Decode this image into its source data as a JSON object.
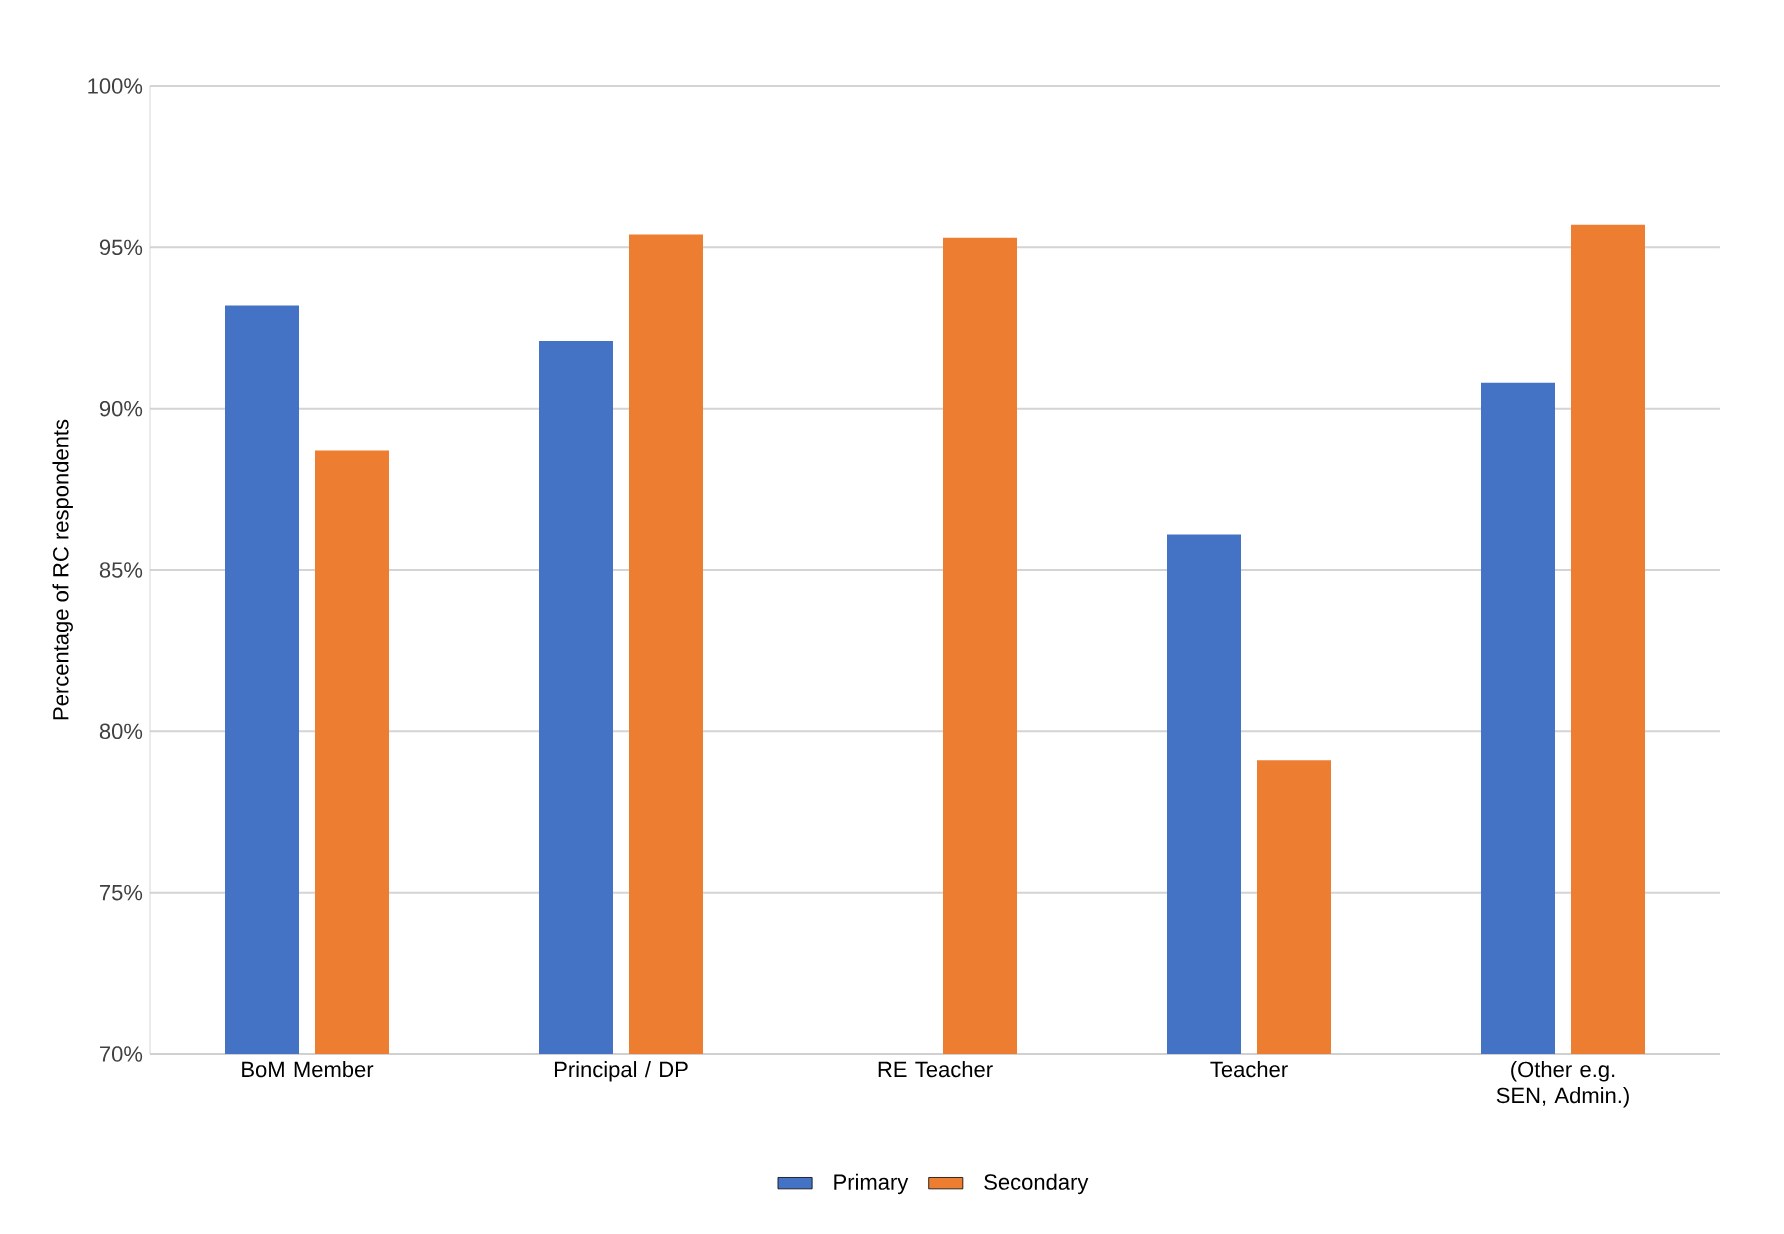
{
  "chart_data": {
    "type": "bar",
    "ylabel": "Percentage of RC respondents",
    "categories": [
      "BoM Member",
      "Principal / DP",
      "RE Teacher",
      "Teacher",
      "(Other e.g. SEN, Admin.)"
    ],
    "series": [
      {
        "name": "Primary",
        "color": "#4472c4",
        "values": [
          93.2,
          92.1,
          null,
          86.1,
          90.8
        ]
      },
      {
        "name": "Secondary",
        "color": "#ed7d31",
        "values": [
          88.7,
          95.4,
          95.3,
          79.1,
          95.7
        ]
      }
    ],
    "ylim": [
      70,
      100
    ],
    "yticks": [
      {
        "value": 70,
        "label": "70%"
      },
      {
        "value": 75,
        "label": "75%"
      },
      {
        "value": 80,
        "label": "80%"
      },
      {
        "value": 85,
        "label": "85%"
      },
      {
        "value": 90,
        "label": "90%"
      },
      {
        "value": 95,
        "label": "95%"
      },
      {
        "value": 100,
        "label": "100%"
      }
    ],
    "grid": "y",
    "legend": "bottom"
  }
}
